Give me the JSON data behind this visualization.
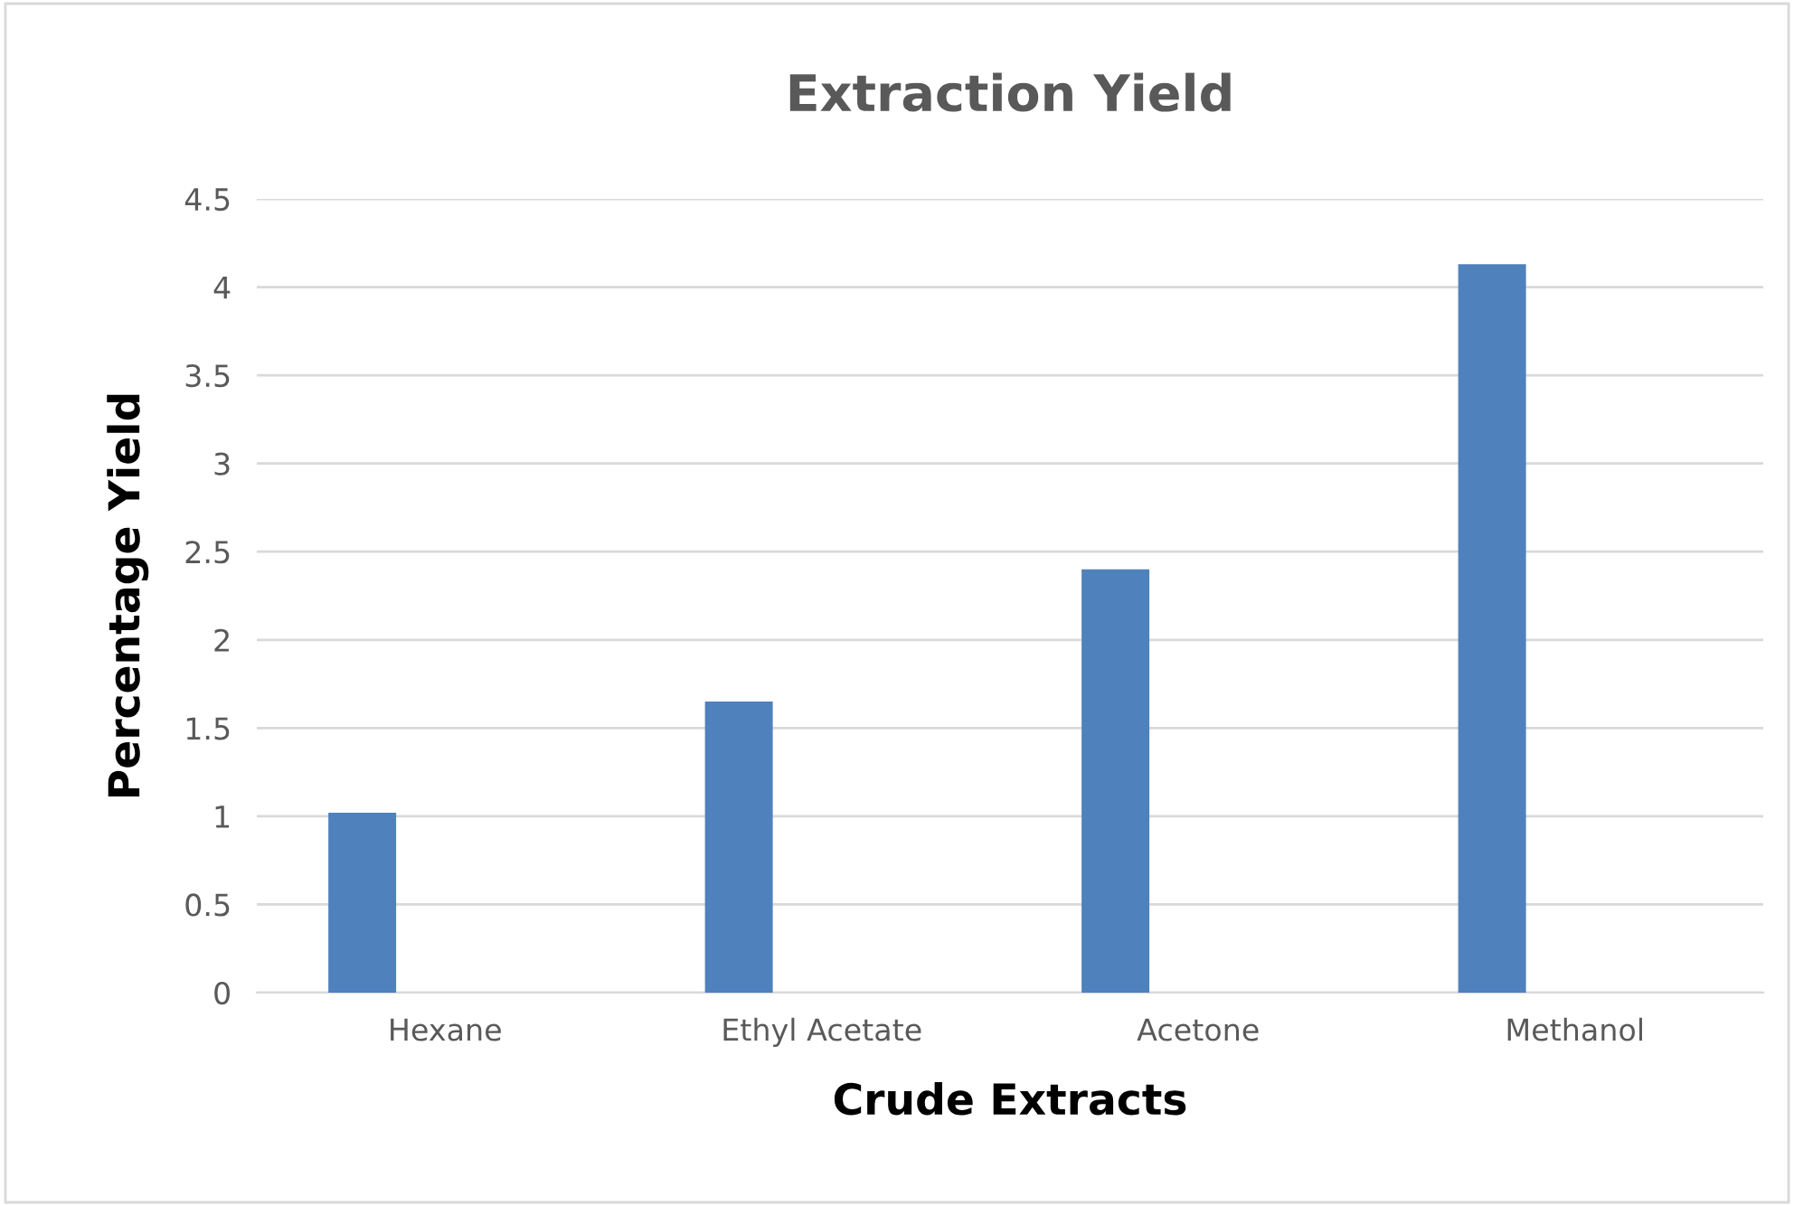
{
  "chart_data": {
    "type": "bar",
    "title": "Extraction Yield",
    "xlabel": "Crude Extracts",
    "ylabel": "Percentage Yield",
    "categories": [
      "Hexane",
      "Ethyl Acetate",
      "Acetone",
      "Methanol"
    ],
    "series": [
      {
        "color": "#4f81bd",
        "values": [
          1.02,
          1.65,
          2.4,
          4.13
        ]
      },
      {
        "values": [
          null,
          null,
          null,
          null
        ]
      }
    ],
    "ylim": [
      0,
      4.5
    ],
    "yticks": [
      0,
      0.5,
      1,
      1.5,
      2,
      2.5,
      3,
      3.5,
      4,
      4.5
    ],
    "grid": "y"
  }
}
